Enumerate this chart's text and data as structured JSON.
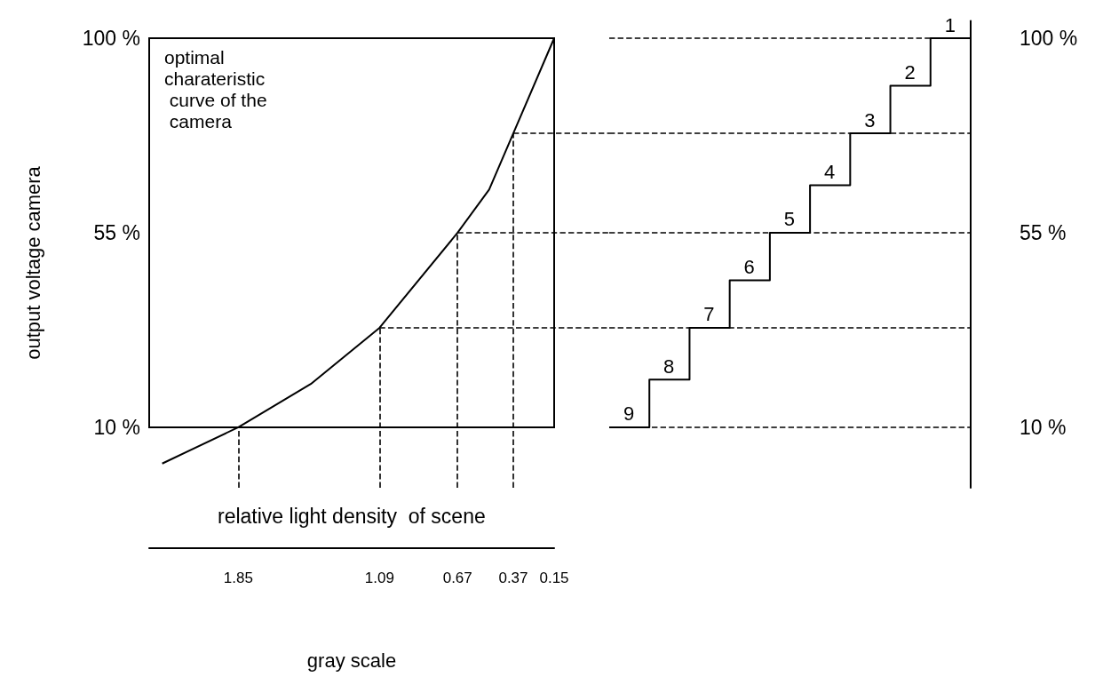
{
  "chart_data": [
    {
      "type": "line",
      "ylabel": "output voltage camera",
      "xlabel": "gray scale",
      "annotations": [
        "optimal charateristic curve of the camera",
        "relative light density  of scene"
      ],
      "x": [
        2.26,
        1.85,
        1.46,
        1.09,
        0.67,
        0.5,
        0.37,
        0.15
      ],
      "values": [
        1.6,
        10,
        20,
        33,
        55,
        65,
        78,
        100
      ],
      "color": "#000000",
      "xlim": [
        2.33,
        0.15
      ],
      "ylim": [
        -4,
        100
      ],
      "xticks": [
        1.85,
        1.09,
        0.67,
        0.37,
        0.15
      ],
      "yticks": [
        {
          "value": 10,
          "label": "10 %"
        },
        {
          "value": 55,
          "label": "55 %"
        },
        {
          "value": 100,
          "label": "100 %"
        }
      ],
      "ref_lines": [
        {
          "axis": "x",
          "value": 1.85,
          "line_style": "dashed"
        },
        {
          "axis": "x",
          "value": 1.09,
          "line_style": "dashed"
        },
        {
          "axis": "x",
          "value": 0.67,
          "line_style": "dashed"
        },
        {
          "axis": "x",
          "value": 0.37,
          "line_style": "dashed"
        },
        {
          "axis": "y",
          "value": 33,
          "line_style": "dashed"
        },
        {
          "axis": "y",
          "value": 55,
          "line_style": "dashed"
        },
        {
          "axis": "y",
          "value": 78,
          "line_style": "dashed"
        }
      ]
    },
    {
      "type": "step",
      "categories": [
        null,
        null,
        null,
        null,
        null,
        null,
        null,
        null,
        null,
        null
      ],
      "values": [
        10,
        21,
        33,
        44,
        55,
        66,
        78,
        89,
        100,
        1.6
      ],
      "color": "#000000",
      "annotations": [
        "9",
        "8",
        "7",
        "6",
        "5",
        "4",
        "3",
        "2",
        "1"
      ],
      "ylim": [
        -4,
        104
      ],
      "yticks": [
        {
          "value": 10,
          "label": "10 %"
        },
        {
          "value": 55,
          "label": "55 %"
        },
        {
          "value": 100,
          "label": "100 %"
        }
      ],
      "tick_labels": "y",
      "ref_lines": [
        {
          "axis": "y",
          "value": 10,
          "line_style": "dashed"
        },
        {
          "axis": "y",
          "value": 33,
          "line_style": "dashed"
        },
        {
          "axis": "y",
          "value": 55,
          "line_style": "dashed"
        },
        {
          "axis": "y",
          "value": 78,
          "line_style": "dashed"
        },
        {
          "axis": "y",
          "value": 100,
          "line_style": "dashed"
        }
      ]
    }
  ]
}
